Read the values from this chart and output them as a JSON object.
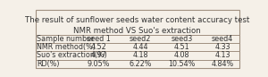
{
  "title_line1": "The result of sunflower seeds water content accuracy test",
  "title_line2": "NMR method VS Suo's extraction",
  "columns": [
    "Sample number",
    "seed 1",
    "seed2",
    "seed3",
    "seed4"
  ],
  "rows": [
    [
      "NMR method(%)",
      "4.52",
      "4.44",
      "4.51",
      "4.33"
    ],
    [
      "Suo's extraction(%)",
      "4.97",
      "4.18",
      "4.08",
      "4.13"
    ],
    [
      "RD(%)",
      "9.05%",
      "6.22%",
      "10.54%",
      "4.84%"
    ]
  ],
  "bg_color": "#f5f0e8",
  "border_color": "#a09080",
  "text_color": "#333333",
  "title_fontsize": 6.2,
  "header_fontsize": 5.8,
  "cell_fontsize": 5.8
}
